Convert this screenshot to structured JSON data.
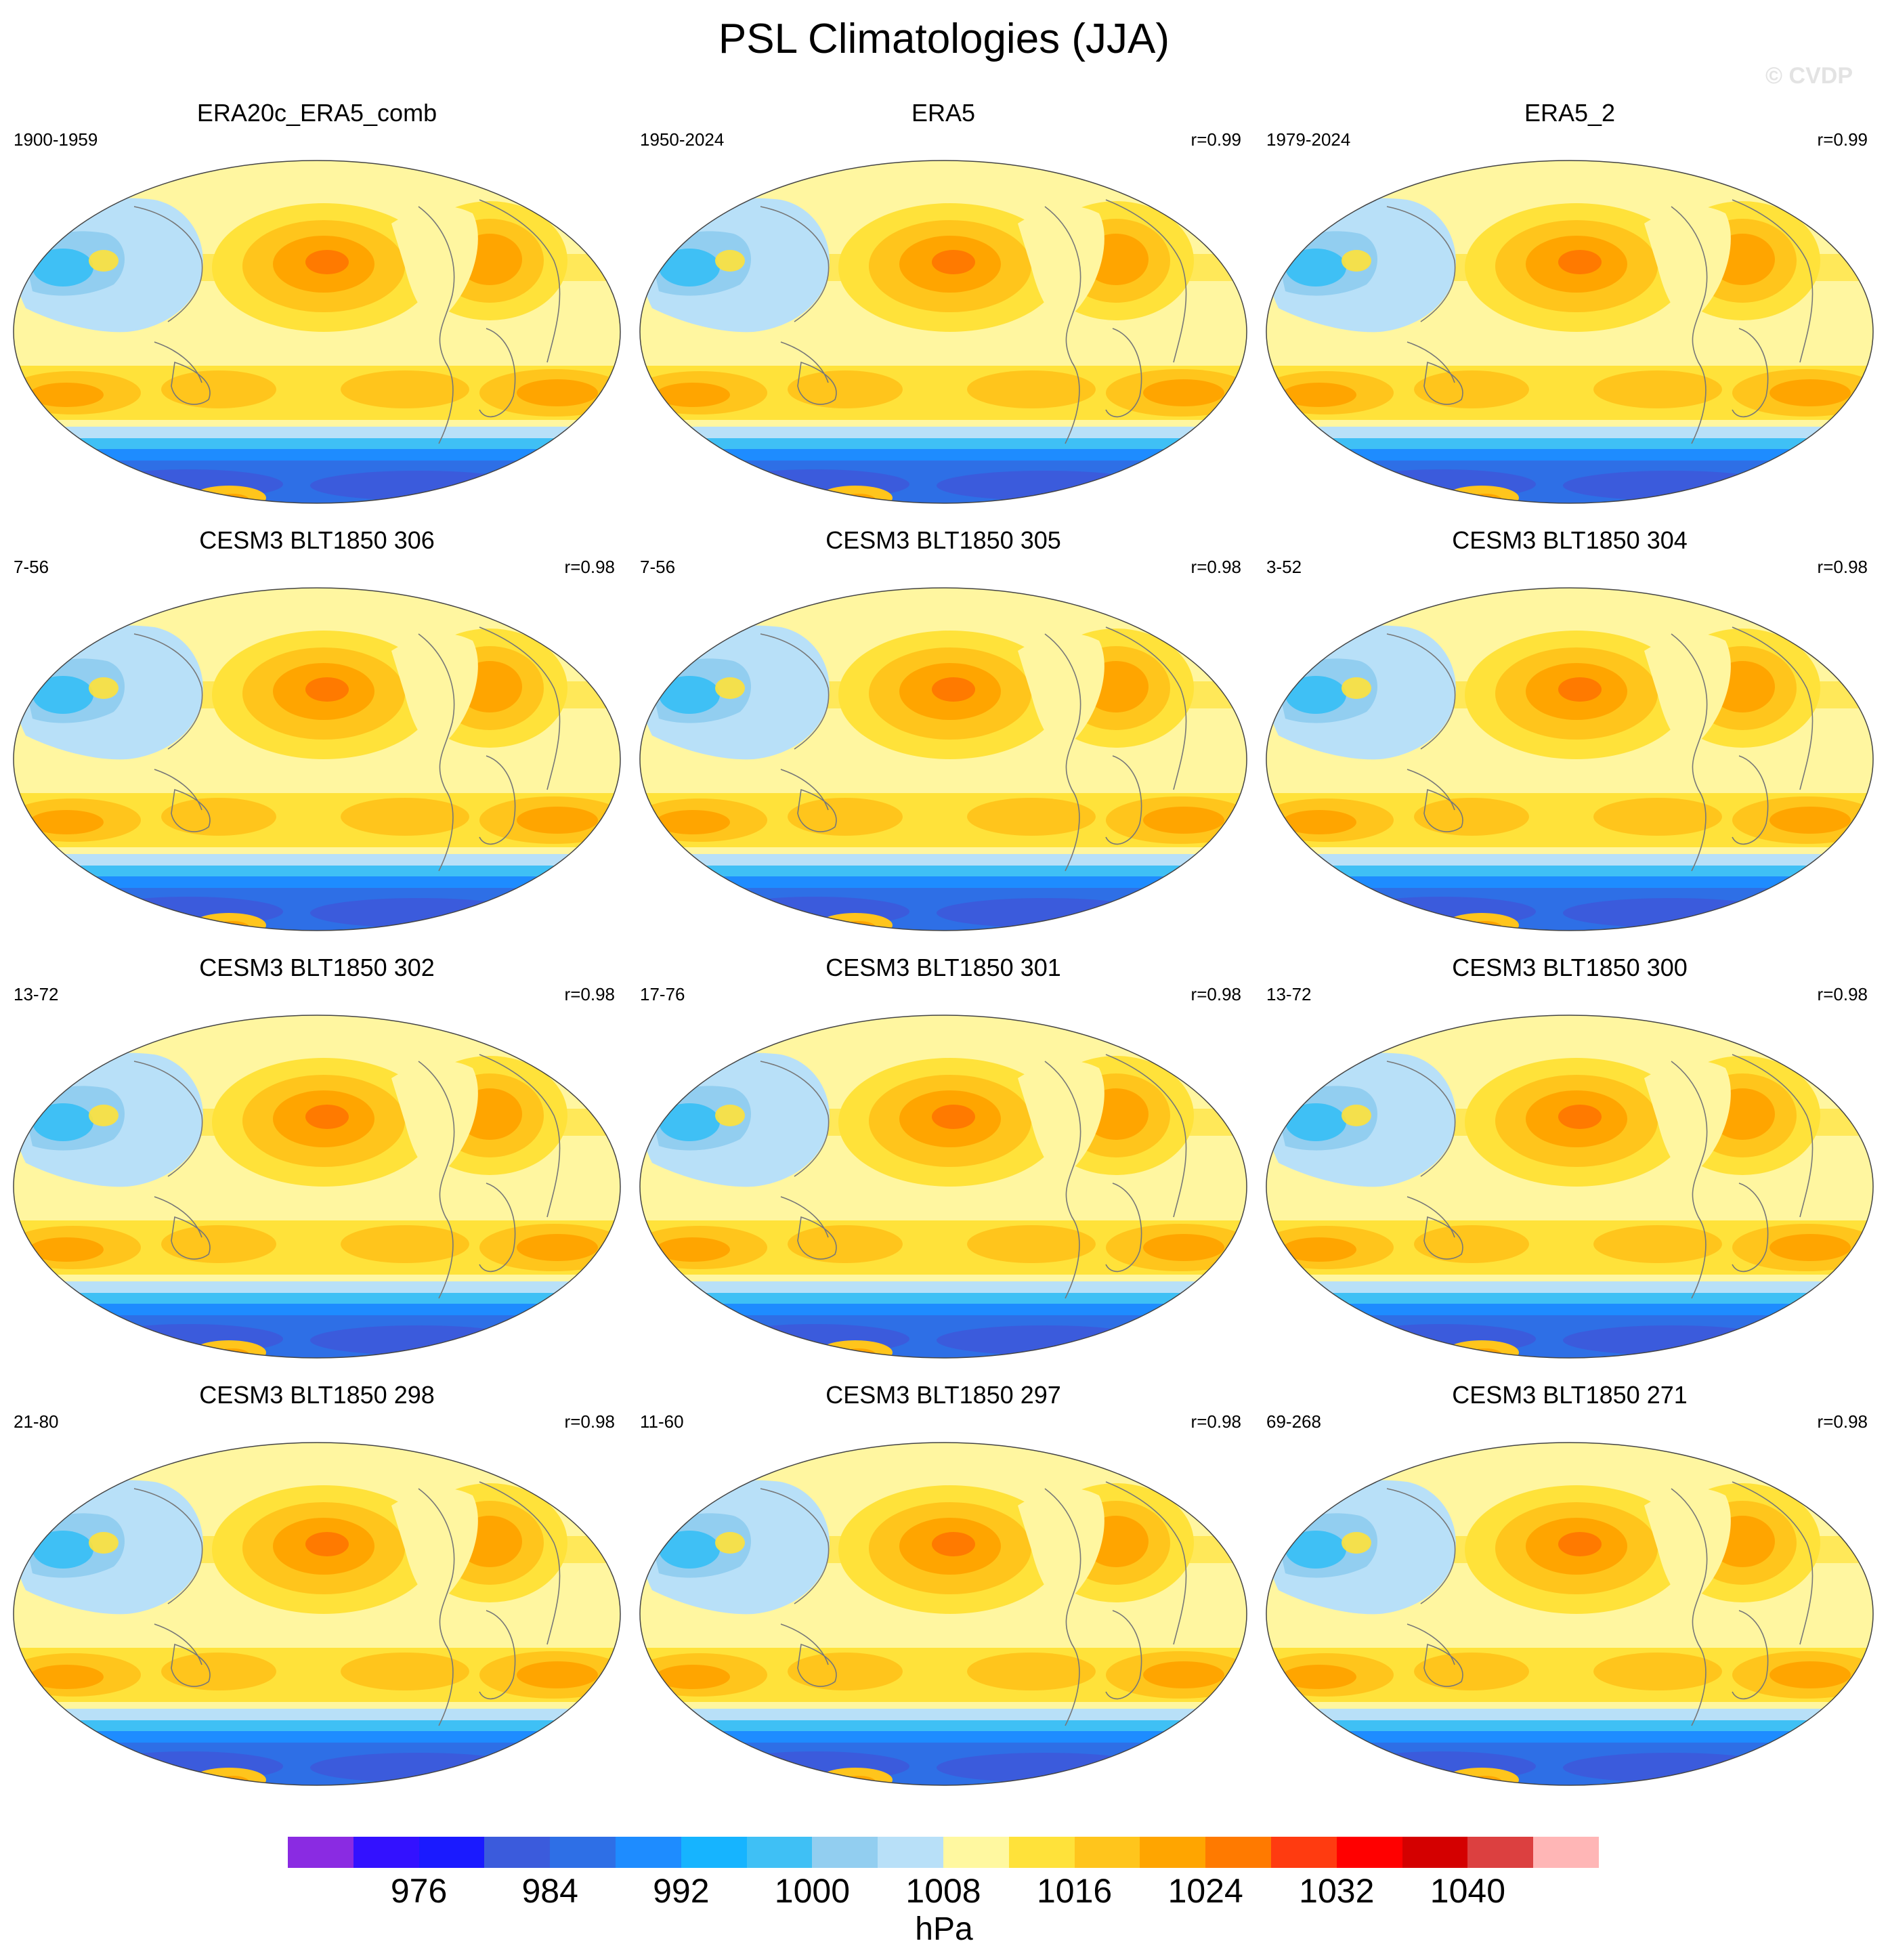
{
  "title": "PSL Climatologies (JJA)",
  "watermark": "© CVDP",
  "panels": [
    {
      "title": "ERA20c_ERA5_comb",
      "period": "1900-1959",
      "corr": ""
    },
    {
      "title": "ERA5",
      "period": "1950-2024",
      "corr": "r=0.99"
    },
    {
      "title": "ERA5_2",
      "period": "1979-2024",
      "corr": "r=0.99"
    },
    {
      "title": "CESM3 BLT1850 306",
      "period": "7-56",
      "corr": "r=0.98"
    },
    {
      "title": "CESM3 BLT1850 305",
      "period": "7-56",
      "corr": "r=0.98"
    },
    {
      "title": "CESM3 BLT1850 304",
      "period": "3-52",
      "corr": "r=0.98"
    },
    {
      "title": "CESM3 BLT1850 302",
      "period": "13-72",
      "corr": "r=0.98"
    },
    {
      "title": "CESM3 BLT1850 301",
      "period": "17-76",
      "corr": "r=0.98"
    },
    {
      "title": "CESM3 BLT1850 300",
      "period": "13-72",
      "corr": "r=0.98"
    },
    {
      "title": "CESM3 BLT1850 298",
      "period": "21-80",
      "corr": "r=0.98"
    },
    {
      "title": "CESM3 BLT1850 297",
      "period": "11-60",
      "corr": "r=0.98"
    },
    {
      "title": "CESM3 BLT1850 271",
      "period": "69-268",
      "corr": "r=0.98"
    }
  ],
  "colorbar": {
    "colors": [
      "#8a2be2",
      "#3311ff",
      "#1a1aff",
      "#3b5bdc",
      "#2e6fe6",
      "#1e8cff",
      "#16b4ff",
      "#3fc0f5",
      "#92cef0",
      "#b8e0f8",
      "#fff8a0",
      "#ffe23a",
      "#ffc51c",
      "#ffa500",
      "#ff7a00",
      "#ff3b10",
      "#ff0000",
      "#d40000",
      "#dc4040",
      "#ffb6b6"
    ],
    "labels": [
      "976",
      "984",
      "992",
      "1000",
      "1008",
      "1016",
      "1024",
      "1032",
      "1040"
    ],
    "label_boundaries": [
      2,
      4,
      6,
      8,
      10,
      12,
      14,
      16,
      18
    ],
    "units": "hPa"
  },
  "map_colors": {
    "ocean_base": "#fff6a0",
    "moderate_high": "#ffe23a",
    "high": "#ffc51c",
    "strong_high": "#ffa500",
    "core_high": "#ff7a00",
    "low_light": "#b8e0f8",
    "low_mid": "#92cef0",
    "low": "#3fc0f5",
    "southern_low_1": "#1e8cff",
    "southern_low_2": "#2e6fe6",
    "southern_low_3": "#3b5bdc",
    "coast": "#777777"
  }
}
